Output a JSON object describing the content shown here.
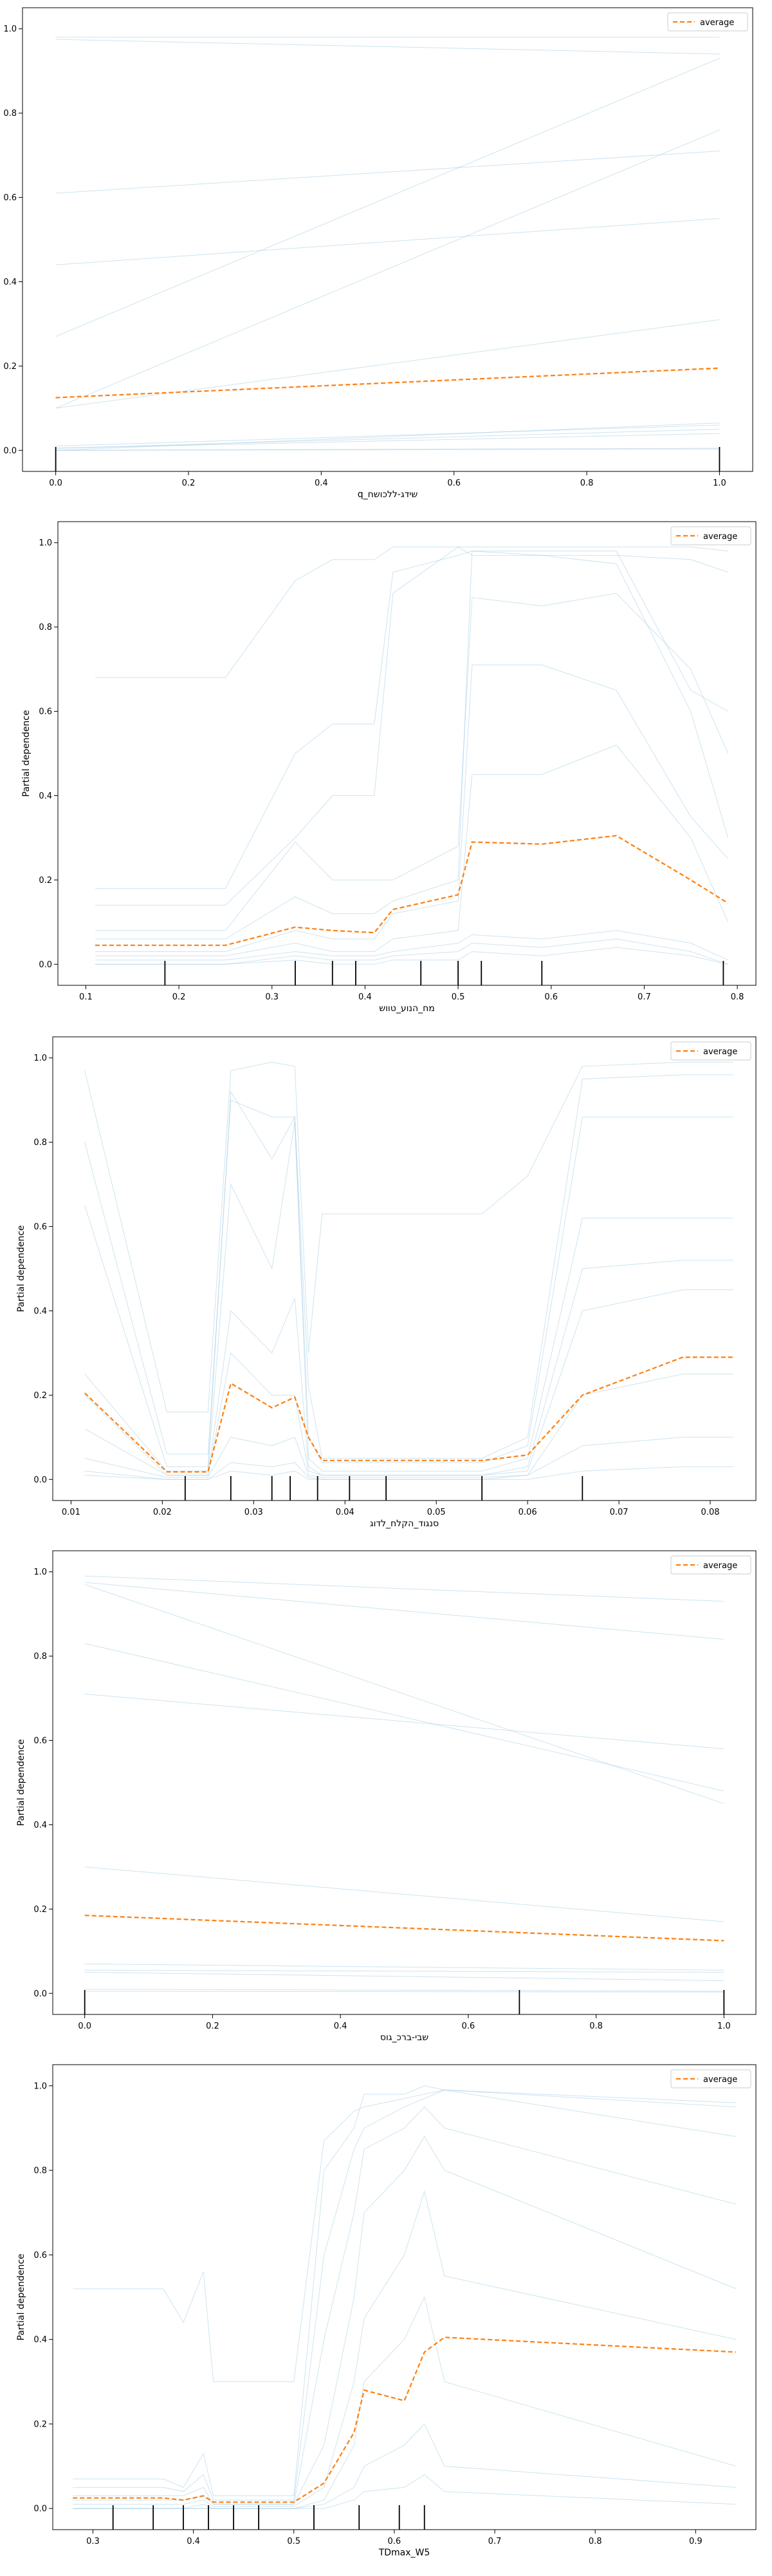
{
  "colors": {
    "ice_line": "#9ecae1",
    "average_line": "#ff7f0e",
    "rug": "#000000",
    "axis": "#000000"
  },
  "chart_data": [
    {
      "type": "line",
      "xlabel": "שידג-ללכושח_q",
      "ylabel": "Partial dependence",
      "xlim": [
        -0.05,
        1.05
      ],
      "ylim": [
        -0.05,
        1.05
      ],
      "xticks": [
        0.0,
        0.2,
        0.4,
        0.6,
        0.8,
        1.0
      ],
      "xtick_labels": [
        "0.0",
        "0.2",
        "0.4",
        "0.6",
        "0.8",
        "1.0"
      ],
      "yticks": [
        0.0,
        0.2,
        0.4,
        0.6,
        0.8,
        1.0
      ],
      "ytick_labels": [
        "0.0",
        "0.2",
        "0.4",
        "0.6",
        "0.8",
        "1.0"
      ],
      "legend": {
        "label": "average",
        "placement": "upper right"
      },
      "x": [
        0.0,
        1.0
      ],
      "ice": [
        [
          0.98,
          0.98
        ],
        [
          0.975,
          0.94
        ],
        [
          0.61,
          0.71
        ],
        [
          0.44,
          0.55
        ],
        [
          0.27,
          0.93
        ],
        [
          0.1,
          0.76
        ],
        [
          0.1,
          0.31
        ],
        [
          0.01,
          0.06
        ],
        [
          0.005,
          0.05
        ],
        [
          0.005,
          0.04
        ],
        [
          0.0,
          0.065
        ],
        [
          0.0,
          0.005
        ],
        [
          0.0,
          0.003
        ]
      ],
      "average": [
        0.125,
        0.195
      ],
      "rug": [
        0.0,
        1.0
      ]
    },
    {
      "type": "line",
      "xlabel": "מח_הנוע_טווש",
      "ylabel": "Partial dependence",
      "xlim": [
        0.07,
        0.82
      ],
      "ylim": [
        -0.05,
        1.05
      ],
      "xticks": [
        0.1,
        0.2,
        0.3,
        0.4,
        0.5,
        0.6,
        0.7,
        0.8
      ],
      "xtick_labels": [
        "0.1",
        "0.2",
        "0.3",
        "0.4",
        "0.5",
        "0.6",
        "0.7",
        "0.8"
      ],
      "yticks": [
        0.0,
        0.2,
        0.4,
        0.6,
        0.8,
        1.0
      ],
      "ytick_labels": [
        "0.0",
        "0.2",
        "0.4",
        "0.6",
        "0.8",
        "1.0"
      ],
      "legend": {
        "label": "average",
        "placement": "upper right"
      },
      "x": [
        0.11,
        0.25,
        0.325,
        0.365,
        0.41,
        0.43,
        0.5,
        0.515,
        0.59,
        0.67,
        0.75,
        0.79
      ],
      "ice": [
        [
          0.68,
          0.68,
          0.91,
          0.96,
          0.96,
          0.99,
          0.99,
          0.99,
          0.99,
          0.99,
          0.99,
          0.98
        ],
        [
          0.18,
          0.18,
          0.5,
          0.57,
          0.57,
          0.93,
          0.97,
          0.98,
          0.98,
          0.98,
          0.65,
          0.6
        ],
        [
          0.14,
          0.14,
          0.3,
          0.4,
          0.4,
          0.88,
          0.99,
          0.97,
          0.97,
          0.97,
          0.96,
          0.93
        ],
        [
          0.08,
          0.08,
          0.29,
          0.2,
          0.2,
          0.2,
          0.28,
          0.87,
          0.85,
          0.88,
          0.7,
          0.5
        ],
        [
          0.06,
          0.06,
          0.16,
          0.12,
          0.12,
          0.15,
          0.2,
          0.98,
          0.97,
          0.95,
          0.6,
          0.3
        ],
        [
          0.03,
          0.03,
          0.08,
          0.06,
          0.06,
          0.12,
          0.15,
          0.71,
          0.71,
          0.65,
          0.35,
          0.25
        ],
        [
          0.02,
          0.02,
          0.05,
          0.03,
          0.03,
          0.06,
          0.08,
          0.45,
          0.45,
          0.52,
          0.3,
          0.1
        ],
        [
          0.01,
          0.01,
          0.03,
          0.02,
          0.02,
          0.03,
          0.05,
          0.07,
          0.06,
          0.08,
          0.05,
          0.01
        ],
        [
          0.0,
          0.0,
          0.02,
          0.01,
          0.01,
          0.02,
          0.03,
          0.05,
          0.04,
          0.06,
          0.03,
          0.0
        ],
        [
          0.0,
          0.0,
          0.01,
          0.0,
          0.0,
          0.01,
          0.01,
          0.03,
          0.02,
          0.04,
          0.02,
          0.0
        ]
      ],
      "average": [
        0.045,
        0.045,
        0.088,
        0.08,
        0.075,
        0.13,
        0.165,
        0.29,
        0.285,
        0.305,
        0.2,
        0.145
      ],
      "rug": [
        0.185,
        0.325,
        0.365,
        0.39,
        0.46,
        0.5,
        0.525,
        0.59,
        0.785
      ]
    },
    {
      "type": "line",
      "xlabel": "סנגוד_הקלח_לדוג",
      "ylabel": "Partial dependence",
      "xlim": [
        0.008,
        0.085
      ],
      "ylim": [
        -0.05,
        1.05
      ],
      "xticks": [
        0.01,
        0.02,
        0.03,
        0.04,
        0.05,
        0.06,
        0.07,
        0.08
      ],
      "xtick_labels": [
        "0.01",
        "0.02",
        "0.03",
        "0.04",
        "0.05",
        "0.06",
        "0.07",
        "0.08"
      ],
      "yticks": [
        0.0,
        0.2,
        0.4,
        0.6,
        0.8,
        1.0
      ],
      "ytick_labels": [
        "0.0",
        "0.2",
        "0.4",
        "0.6",
        "0.8",
        "1.0"
      ],
      "legend": {
        "label": "average",
        "placement": "upper right"
      },
      "x": [
        0.0115,
        0.0205,
        0.025,
        0.0275,
        0.032,
        0.0345,
        0.036,
        0.0375,
        0.055,
        0.06,
        0.066,
        0.077,
        0.0825
      ],
      "ice": [
        [
          0.97,
          0.16,
          0.16,
          0.97,
          0.99,
          0.98,
          0.3,
          0.63,
          0.63,
          0.72,
          0.98,
          0.99,
          0.99
        ],
        [
          0.8,
          0.06,
          0.06,
          0.9,
          0.86,
          0.86,
          0.22,
          0.05,
          0.05,
          0.1,
          0.95,
          0.96,
          0.96
        ],
        [
          0.65,
          0.03,
          0.03,
          0.92,
          0.76,
          0.86,
          0.1,
          0.04,
          0.04,
          0.08,
          0.86,
          0.86,
          0.86
        ],
        [
          0.25,
          0.02,
          0.02,
          0.7,
          0.5,
          0.85,
          0.05,
          0.02,
          0.02,
          0.05,
          0.62,
          0.62,
          0.62
        ],
        [
          0.2,
          0.01,
          0.01,
          0.4,
          0.3,
          0.43,
          0.03,
          0.01,
          0.01,
          0.03,
          0.5,
          0.52,
          0.52
        ],
        [
          0.12,
          0.01,
          0.01,
          0.3,
          0.2,
          0.2,
          0.02,
          0.01,
          0.01,
          0.02,
          0.4,
          0.45,
          0.45
        ],
        [
          0.05,
          0.005,
          0.005,
          0.1,
          0.08,
          0.1,
          0.01,
          0.005,
          0.005,
          0.01,
          0.2,
          0.25,
          0.25
        ],
        [
          0.02,
          0.0,
          0.0,
          0.04,
          0.03,
          0.04,
          0.005,
          0.0,
          0.0,
          0.01,
          0.08,
          0.1,
          0.1
        ],
        [
          0.01,
          0.0,
          0.0,
          0.02,
          0.01,
          0.02,
          0.0,
          0.0,
          0.0,
          0.0,
          0.02,
          0.03,
          0.03
        ]
      ],
      "average": [
        0.205,
        0.018,
        0.018,
        0.228,
        0.17,
        0.195,
        0.1,
        0.045,
        0.045,
        0.058,
        0.2,
        0.29,
        0.29
      ],
      "rug": [
        0.0225,
        0.0275,
        0.032,
        0.034,
        0.037,
        0.0405,
        0.0445,
        0.055,
        0.066
      ]
    },
    {
      "type": "line",
      "xlabel": "שבי-ברכ_גוס",
      "ylabel": "Partial dependence",
      "xlim": [
        -0.05,
        1.05
      ],
      "ylim": [
        -0.05,
        1.05
      ],
      "xticks": [
        0.0,
        0.2,
        0.4,
        0.6,
        0.8,
        1.0
      ],
      "xtick_labels": [
        "0.0",
        "0.2",
        "0.4",
        "0.6",
        "0.8",
        "1.0"
      ],
      "yticks": [
        0.0,
        0.2,
        0.4,
        0.6,
        0.8,
        1.0
      ],
      "ytick_labels": [
        "0.0",
        "0.2",
        "0.4",
        "0.6",
        "0.8",
        "1.0"
      ],
      "legend": {
        "label": "average",
        "placement": "upper right"
      },
      "x": [
        0.0,
        1.0
      ],
      "ice": [
        [
          0.99,
          0.93
        ],
        [
          0.975,
          0.84
        ],
        [
          0.97,
          0.45
        ],
        [
          0.83,
          0.48
        ],
        [
          0.71,
          0.58
        ],
        [
          0.3,
          0.17
        ],
        [
          0.07,
          0.055
        ],
        [
          0.055,
          0.05
        ],
        [
          0.05,
          0.03
        ],
        [
          0.01,
          0.005
        ],
        [
          0.005,
          0.003
        ]
      ],
      "average": [
        0.185,
        0.125
      ],
      "rug": [
        0.0,
        0.68,
        1.0
      ]
    },
    {
      "type": "line",
      "xlabel": "TDmax_W5",
      "ylabel": "Partial dependence",
      "xlim": [
        0.26,
        0.96
      ],
      "ylim": [
        -0.05,
        1.05
      ],
      "xticks": [
        0.3,
        0.4,
        0.5,
        0.6,
        0.7,
        0.8,
        0.9
      ],
      "xtick_labels": [
        "0.3",
        "0.4",
        "0.5",
        "0.6",
        "0.7",
        "0.8",
        "0.9"
      ],
      "yticks": [
        0.0,
        0.2,
        0.4,
        0.6,
        0.8,
        1.0
      ],
      "ytick_labels": [
        "0.0",
        "0.2",
        "0.4",
        "0.6",
        "0.8",
        "1.0"
      ],
      "legend": {
        "label": "average",
        "placement": "upper right"
      },
      "x": [
        0.28,
        0.37,
        0.39,
        0.41,
        0.42,
        0.44,
        0.5,
        0.53,
        0.56,
        0.57,
        0.61,
        0.63,
        0.65,
        0.94
      ],
      "ice": [
        [
          0.52,
          0.52,
          0.44,
          0.56,
          0.3,
          0.3,
          0.3,
          0.87,
          0.94,
          0.95,
          0.97,
          0.98,
          0.99,
          0.96
        ],
        [
          0.07,
          0.07,
          0.05,
          0.13,
          0.03,
          0.03,
          0.03,
          0.8,
          0.9,
          0.98,
          0.98,
          1.0,
          0.99,
          0.95
        ],
        [
          0.05,
          0.05,
          0.04,
          0.08,
          0.02,
          0.02,
          0.02,
          0.6,
          0.85,
          0.9,
          0.95,
          0.97,
          0.99,
          0.88
        ],
        [
          0.03,
          0.03,
          0.03,
          0.05,
          0.01,
          0.01,
          0.01,
          0.4,
          0.7,
          0.85,
          0.9,
          0.95,
          0.9,
          0.72
        ],
        [
          0.02,
          0.02,
          0.02,
          0.03,
          0.01,
          0.01,
          0.01,
          0.15,
          0.5,
          0.7,
          0.8,
          0.88,
          0.8,
          0.52
        ],
        [
          0.01,
          0.01,
          0.01,
          0.02,
          0.005,
          0.005,
          0.005,
          0.05,
          0.3,
          0.45,
          0.6,
          0.75,
          0.55,
          0.4
        ],
        [
          0.0,
          0.0,
          0.0,
          0.01,
          0.0,
          0.0,
          0.0,
          0.02,
          0.15,
          0.3,
          0.4,
          0.5,
          0.3,
          0.1
        ],
        [
          0.0,
          0.0,
          0.0,
          0.0,
          0.0,
          0.0,
          0.0,
          0.01,
          0.05,
          0.1,
          0.15,
          0.2,
          0.1,
          0.05
        ],
        [
          0.0,
          0.0,
          0.0,
          0.0,
          0.0,
          0.0,
          0.0,
          0.0,
          0.02,
          0.04,
          0.05,
          0.08,
          0.04,
          0.01
        ]
      ],
      "average": [
        0.025,
        0.025,
        0.02,
        0.03,
        0.015,
        0.015,
        0.015,
        0.06,
        0.18,
        0.28,
        0.255,
        0.37,
        0.405,
        0.37
      ],
      "rug": [
        0.32,
        0.36,
        0.39,
        0.415,
        0.44,
        0.465,
        0.52,
        0.565,
        0.605,
        0.63
      ]
    }
  ]
}
